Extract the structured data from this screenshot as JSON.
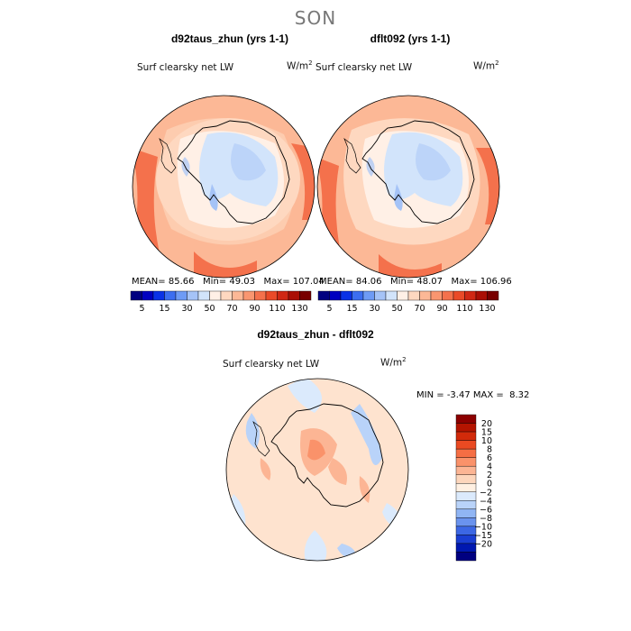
{
  "season": "SON",
  "panels": [
    {
      "title": "d92taus_zhun (yrs 1-1)",
      "variable": "Surf clearsky net LW",
      "units": "W/m",
      "units_sup": "2",
      "mean_label": "MEAN=",
      "mean": "85.66",
      "min_label": "Min=",
      "min": "49.03",
      "max_label": "Max=",
      "max": "107.04"
    },
    {
      "title": "dflt092 (yrs 1-1)",
      "variable": "Surf clearsky net LW",
      "units": "W/m",
      "units_sup": "2",
      "mean_label": "MEAN=",
      "mean": "84.06",
      "min_label": "Min=",
      "min": "48.07",
      "max_label": "Max=",
      "max": "106.96"
    }
  ],
  "diff": {
    "title": "d92taus_zhun - dflt092",
    "variable": "Surf clearsky net LW",
    "units": "W/m",
    "units_sup": "2",
    "min_label": "MIN =",
    "min": "-3.47",
    "max_label": "MAX =",
    "max": "8.32"
  },
  "chart_data": [
    {
      "type": "heatmap",
      "projection": "south-polar-stereographic",
      "title": "d92taus_zhun (yrs 1-1)",
      "field": "Surf clearsky net LW",
      "units": "W/m2",
      "stats": {
        "mean": 85.66,
        "min": 49.03,
        "max": 107.04
      },
      "colorbar": {
        "orientation": "horizontal",
        "tick_labels": [
          "5",
          "15",
          "30",
          "50",
          "70",
          "90",
          "110",
          "130"
        ],
        "colors": [
          "#000080",
          "#0000c0",
          "#0a32e6",
          "#3c6ef0",
          "#6e9bf5",
          "#a5c3f7",
          "#d2e4fb",
          "#fff0e6",
          "#fed8c0",
          "#fcb896",
          "#f99670",
          "#f4714c",
          "#ea4a28",
          "#d02814",
          "#aa0f05",
          "#780000"
        ]
      }
    },
    {
      "type": "heatmap",
      "projection": "south-polar-stereographic",
      "title": "dflt092 (yrs 1-1)",
      "field": "Surf clearsky net LW",
      "units": "W/m2",
      "stats": {
        "mean": 84.06,
        "min": 48.07,
        "max": 106.96
      },
      "colorbar": {
        "orientation": "horizontal",
        "tick_labels": [
          "5",
          "15",
          "30",
          "50",
          "70",
          "90",
          "110",
          "130"
        ],
        "colors": [
          "#000080",
          "#0000c0",
          "#0a32e6",
          "#3c6ef0",
          "#6e9bf5",
          "#a5c3f7",
          "#d2e4fb",
          "#fff0e6",
          "#fed8c0",
          "#fcb896",
          "#f99670",
          "#f4714c",
          "#ea4a28",
          "#d02814",
          "#aa0f05",
          "#780000"
        ]
      }
    },
    {
      "type": "heatmap",
      "projection": "south-polar-stereographic",
      "title": "d92taus_zhun - dflt092",
      "field": "Surf clearsky net LW",
      "units": "W/m2",
      "stats": {
        "min": -3.47,
        "max": 8.32
      },
      "colorbar": {
        "orientation": "vertical",
        "tick_labels": [
          "20",
          "15",
          "10",
          "8",
          "6",
          "4",
          "2",
          "0",
          "−2",
          "−4",
          "−6",
          "−8",
          "−10",
          "−15",
          "−20"
        ],
        "colors": [
          "#8c0000",
          "#b41400",
          "#d22a0a",
          "#ea4a22",
          "#f56e44",
          "#fa926a",
          "#fcb594",
          "#fdd6bc",
          "#fff0e2",
          "#dbeafc",
          "#b9d3f9",
          "#90b5f4",
          "#6a93ee",
          "#3c67e4",
          "#1a3ed2",
          "#0018b0",
          "#000080"
        ]
      }
    }
  ]
}
